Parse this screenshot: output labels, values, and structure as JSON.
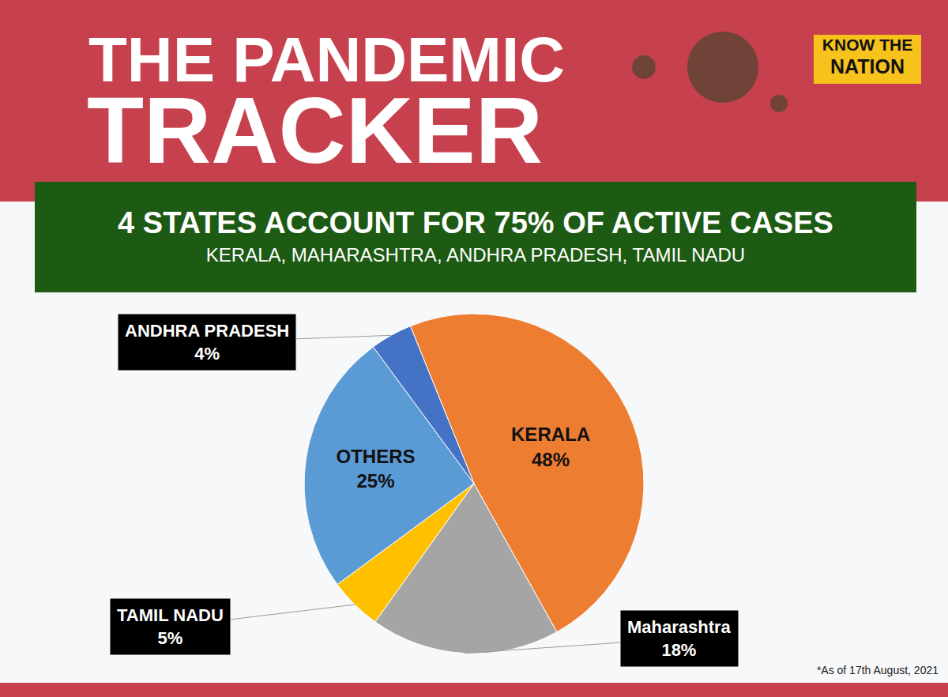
{
  "header": {
    "title": [
      "THE PANDEMIC",
      "TRACKER"
    ],
    "brand": [
      "KNOW THE",
      "NATION"
    ]
  },
  "chart_data": {
    "type": "pie",
    "title": "4 STATES ACCOUNT FOR 75% OF ACTIVE CASES",
    "subtitle": "KERALA, MAHARASHTRA, ANDHRA PRADESH, TAMIL NADU",
    "categories": [
      "KERALA",
      "Maharashtra",
      "TAMIL NADU",
      "OTHERS",
      "ANDHRA PRADESH"
    ],
    "values": [
      48,
      18,
      5,
      25,
      4
    ],
    "value_labels": [
      "48%",
      "18%",
      "5%",
      "25%",
      "4%"
    ],
    "colors": [
      "#ed7d31",
      "#a5a5a5",
      "#ffc000",
      "#5b9bd5",
      "#4472c4"
    ],
    "data_labels": true,
    "annotations": [
      "*As of 17th August, 2021"
    ]
  }
}
